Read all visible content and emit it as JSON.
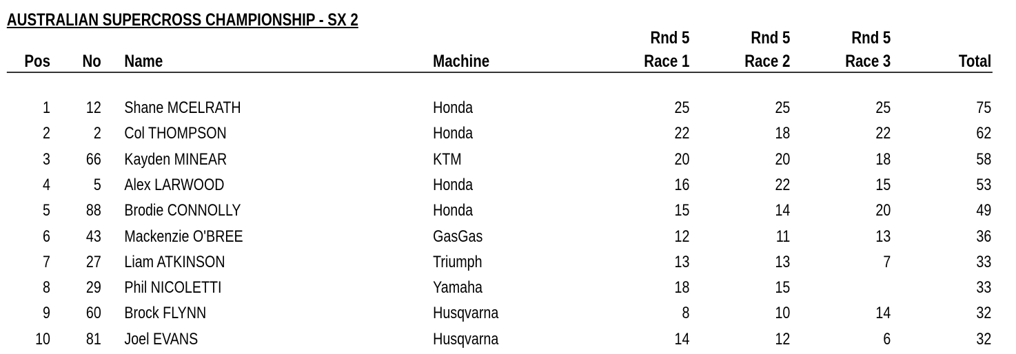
{
  "title": "AUSTRALIAN SUPERCROSS CHAMPIONSHIP - SX 2",
  "columns": {
    "pos": "Pos",
    "no": "No",
    "name": "Name",
    "machine": "Machine",
    "race1": [
      "Rnd 5",
      "Race 1"
    ],
    "race2": [
      "Rnd 5",
      "Race 2"
    ],
    "race3": [
      "Rnd 5",
      "Race 3"
    ],
    "total": "Total"
  },
  "rows": [
    {
      "pos": "1",
      "no": "12",
      "name": "Shane MCELRATH",
      "machine": "Honda",
      "race1": "25",
      "race2": "25",
      "race3": "25",
      "total": "75"
    },
    {
      "pos": "2",
      "no": "2",
      "name": "Col THOMPSON",
      "machine": "Honda",
      "race1": "22",
      "race2": "18",
      "race3": "22",
      "total": "62"
    },
    {
      "pos": "3",
      "no": "66",
      "name": "Kayden MINEAR",
      "machine": "KTM",
      "race1": "20",
      "race2": "20",
      "race3": "18",
      "total": "58"
    },
    {
      "pos": "4",
      "no": "5",
      "name": "Alex LARWOOD",
      "machine": "Honda",
      "race1": "16",
      "race2": "22",
      "race3": "15",
      "total": "53"
    },
    {
      "pos": "5",
      "no": "88",
      "name": "Brodie CONNOLLY",
      "machine": "Honda",
      "race1": "15",
      "race2": "14",
      "race3": "20",
      "total": "49"
    },
    {
      "pos": "6",
      "no": "43",
      "name": "Mackenzie O'BREE",
      "machine": "GasGas",
      "race1": "12",
      "race2": "11",
      "race3": "13",
      "total": "36"
    },
    {
      "pos": "7",
      "no": "27",
      "name": "Liam ATKINSON",
      "machine": "Triumph",
      "race1": "13",
      "race2": "13",
      "race3": "7",
      "total": "33"
    },
    {
      "pos": "8",
      "no": "29",
      "name": "Phil NICOLETTI",
      "machine": "Yamaha",
      "race1": "18",
      "race2": "15",
      "race3": "",
      "total": "33"
    },
    {
      "pos": "9",
      "no": "60",
      "name": "Brock FLYNN",
      "machine": "Husqvarna",
      "race1": "8",
      "race2": "10",
      "race3": "14",
      "total": "32"
    },
    {
      "pos": "10",
      "no": "81",
      "name": "Joel EVANS",
      "machine": "Husqvarna",
      "race1": "14",
      "race2": "12",
      "race3": "6",
      "total": "32"
    }
  ]
}
